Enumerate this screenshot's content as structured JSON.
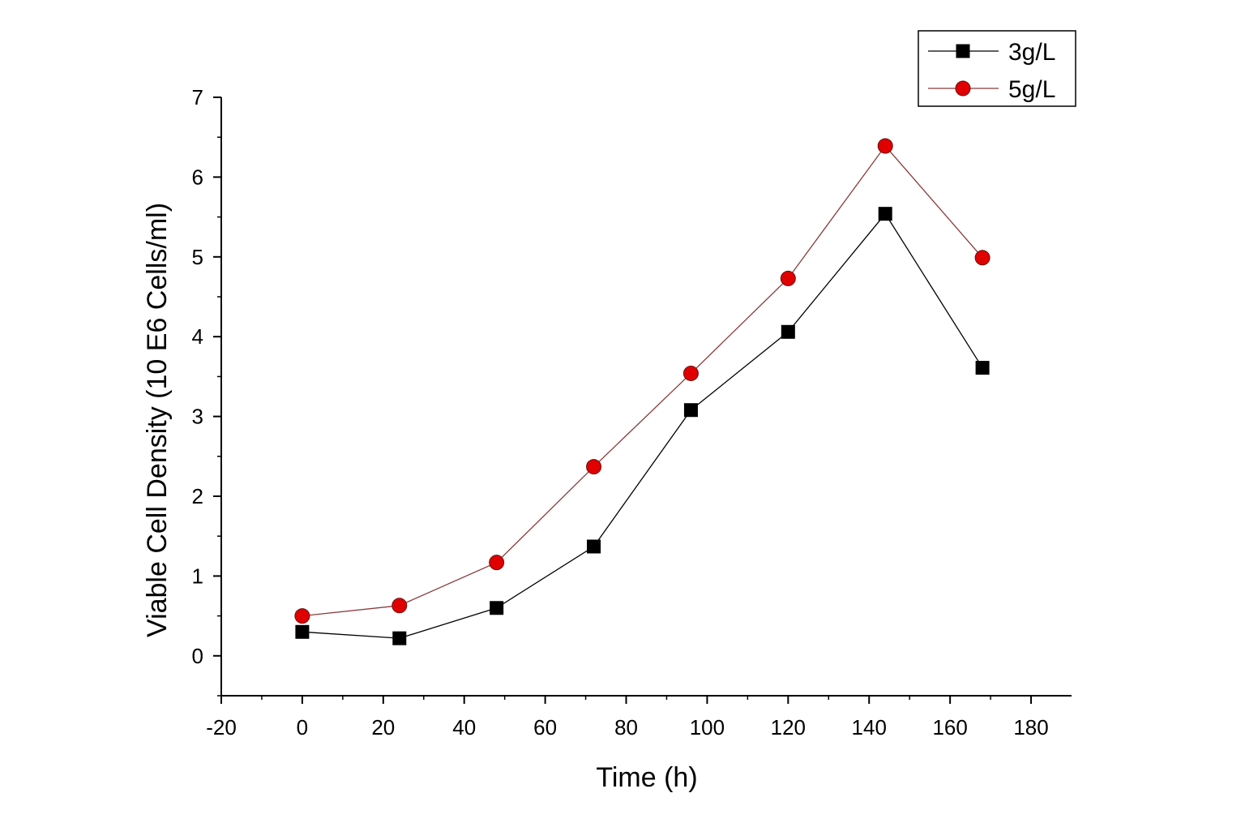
{
  "chart_data": {
    "type": "line",
    "title": "",
    "xlabel": "Time (h)",
    "ylabel": "Viable Cell Density (10 E6 Cells/ml)",
    "xlim": [
      -20,
      190
    ],
    "ylim": [
      -0.5,
      7
    ],
    "xticks": [
      -20,
      0,
      20,
      40,
      60,
      80,
      100,
      120,
      140,
      160,
      180
    ],
    "yticks": [
      0,
      1,
      2,
      3,
      4,
      5,
      6,
      7
    ],
    "grid": false,
    "legend_position": "top-right",
    "x": [
      0,
      24,
      48,
      72,
      96,
      120,
      144,
      168
    ],
    "series": [
      {
        "name": "3g/L",
        "marker": "square",
        "marker_color": "#000000",
        "line_color": "#000000",
        "values": [
          0.3,
          0.22,
          0.6,
          1.37,
          3.08,
          4.06,
          5.54,
          3.61
        ]
      },
      {
        "name": "5g/L",
        "marker": "circle",
        "marker_color": "#e00000",
        "line_color": "#8b3a3a",
        "values": [
          0.5,
          0.63,
          1.17,
          2.37,
          3.54,
          4.73,
          6.39,
          4.99
        ]
      }
    ]
  }
}
